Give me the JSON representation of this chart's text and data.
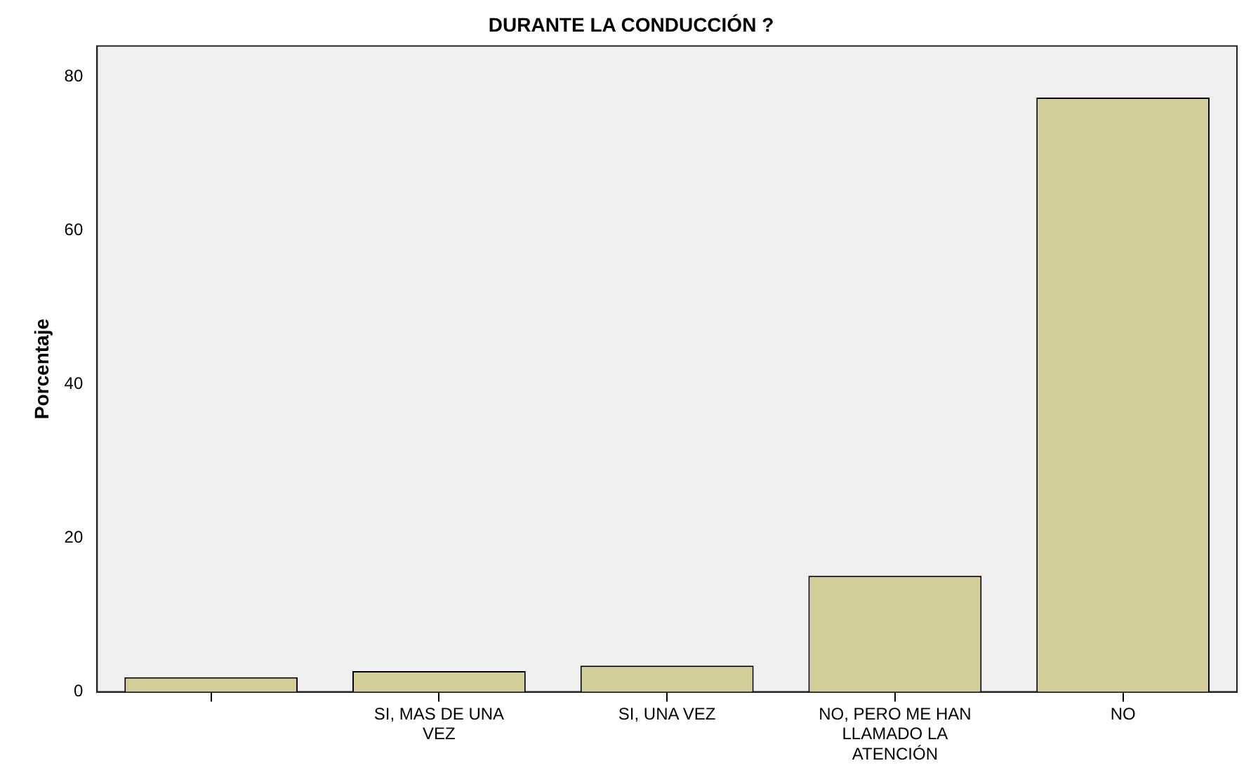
{
  "chart_data": {
    "type": "bar",
    "title": "DURANTE LA CONDUCCIÓN ?",
    "ylabel": "Porcentaje",
    "categories": [
      null,
      "SI, MAS DE UNA VEZ",
      "SI, UNA VEZ",
      "NO, PERO ME HAN LLAMADO LA ATENCIÓN",
      "NO"
    ],
    "values": [
      1.9,
      2.7,
      3.4,
      15.1,
      77.3
    ],
    "color": "#d3ce97",
    "ylim": [
      0,
      84
    ],
    "yticks": [
      0,
      20,
      40,
      60,
      80
    ],
    "grid": false,
    "legend": false
  }
}
